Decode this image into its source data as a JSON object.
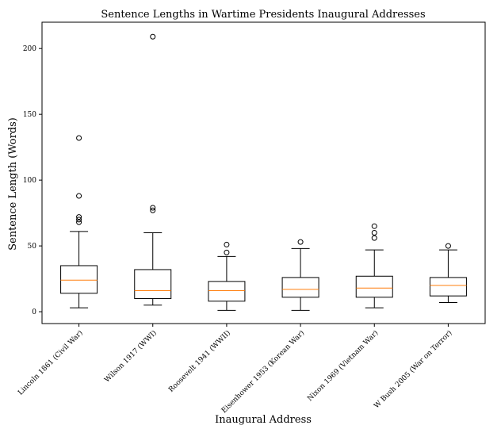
{
  "chart_data": {
    "type": "box",
    "title": "Sentence Lengths in Wartime Presidents Inaugural Addresses",
    "xlabel": "Inaugural Address",
    "ylabel": "Sentence Length (Words)",
    "ylim": [
      -9,
      220
    ],
    "yticks": [
      0,
      50,
      100,
      150,
      200
    ],
    "grid": false,
    "colors": {
      "box": "#000000",
      "median": "#ff7f0e",
      "background": "#ffffff"
    },
    "categories": [
      "Lincoln 1861 (Civil War)",
      "Wilson 1917 (WWI)",
      "Roosevelt 1941 (WWII)",
      "Eisenhower 1953 (Korean War)",
      "Nixon 1969 (Vietnam War)",
      "W Bush 2005 (War on Terror)"
    ],
    "boxes": [
      {
        "whisker_low": 3,
        "q1": 14,
        "median": 24,
        "q3": 35,
        "whisker_high": 61,
        "outliers": [
          68,
          70,
          72,
          88,
          132
        ]
      },
      {
        "whisker_low": 5,
        "q1": 10,
        "median": 16,
        "q3": 32,
        "whisker_high": 60,
        "outliers": [
          77,
          79,
          209
        ]
      },
      {
        "whisker_low": 1,
        "q1": 8,
        "median": 16,
        "q3": 23,
        "whisker_high": 42,
        "outliers": [
          45,
          51
        ]
      },
      {
        "whisker_low": 1,
        "q1": 11,
        "median": 17,
        "q3": 26,
        "whisker_high": 48,
        "outliers": [
          53
        ]
      },
      {
        "whisker_low": 3,
        "q1": 11,
        "median": 18,
        "q3": 27,
        "whisker_high": 47,
        "outliers": [
          56,
          60,
          65
        ]
      },
      {
        "whisker_low": 7,
        "q1": 12,
        "median": 20,
        "q3": 26,
        "whisker_high": 47,
        "outliers": [
          50
        ]
      }
    ]
  }
}
